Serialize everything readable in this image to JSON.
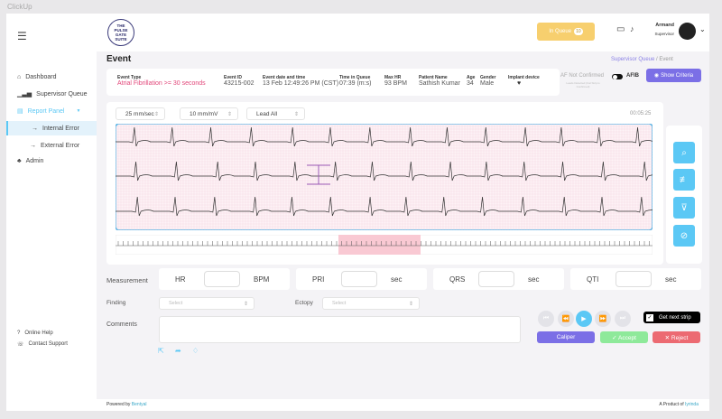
{
  "app_title": "ClickUp",
  "logo_text": "THE PULSE GATE SUITE",
  "sidebar": {
    "items": [
      {
        "label": "Dashboard",
        "icon": "home-icon"
      },
      {
        "label": "Supervisor Queue",
        "icon": "signal-bars-icon"
      },
      {
        "label": "Report Panel",
        "icon": "report-icon"
      },
      {
        "label": "Internal Error",
        "icon": "arrow-right-icon"
      },
      {
        "label": "External Error",
        "icon": "arrow-right-icon"
      },
      {
        "label": "Admin",
        "icon": "org-chart-icon"
      }
    ],
    "footer": [
      {
        "label": "Online Help"
      },
      {
        "label": "Contact Support"
      }
    ]
  },
  "header": {
    "in_queue_label": "In Queue",
    "in_queue_count": "10",
    "user_name": "Armand",
    "user_role": "Supervisor"
  },
  "page": {
    "title": "Event",
    "breadcrumb_link": "Supervisor Queue",
    "breadcrumb_sep": " / ",
    "breadcrumb_current": "Event"
  },
  "event": {
    "fields": [
      {
        "label": "Event Type",
        "value": "Atrial Fibrillation >= 30 seconds"
      },
      {
        "label": "Event ID",
        "value": "43215-002"
      },
      {
        "label": "Event date and time",
        "value": "13 Feb 12:49:26 PM (CST)"
      },
      {
        "label": "Time in Queue",
        "value": "07:39 (m:s)"
      },
      {
        "label": "Max HR",
        "value": "93 BPM"
      },
      {
        "label": "Patient Name",
        "value": "Sathish Kumar"
      },
      {
        "label": "Age",
        "value": "34"
      },
      {
        "label": "Gender",
        "value": "Male"
      },
      {
        "label": "Implant device",
        "value": ""
      }
    ]
  },
  "af": {
    "status": "AF Not Confirmed",
    "note": "Leads Detected (Cal Strip is Confirmed)",
    "toggle_label": "AFIB",
    "show_criteria": "Show Criteria"
  },
  "strip": {
    "speed": "25 mm/sec",
    "gain": "10 mm/mV",
    "lead": "Lead All",
    "time": "00:05:25"
  },
  "measurement": {
    "label": "Measurement",
    "items": [
      {
        "name": "HR",
        "unit": "BPM",
        "value": ""
      },
      {
        "name": "PRI",
        "unit": "sec",
        "value": ""
      },
      {
        "name": "QRS",
        "unit": "sec",
        "value": ""
      },
      {
        "name": "QTI",
        "unit": "sec",
        "value": ""
      }
    ]
  },
  "finding": {
    "label": "Finding",
    "placeholder": "Select"
  },
  "ectopy": {
    "label": "Ectopy",
    "placeholder": "Select"
  },
  "comments": {
    "label": "Comments",
    "value": ""
  },
  "actions": {
    "get_next_strip": "Get next strip",
    "get_next_checked": true,
    "caliper": "Caliper",
    "accept": "✓ Accept",
    "reject": "✕ Reject"
  },
  "colors": {
    "accent": "#5bc8f5",
    "purple": "#7b6fe6",
    "queue": "#f7cf6e",
    "accept": "#8ee99a",
    "reject": "#ec6a72",
    "alert": "#e2477a"
  },
  "footer": {
    "powered_by": "Powered by",
    "powered_brand": "Bentyal",
    "product_of": "A Product of",
    "product_brand": "Iyrinda"
  }
}
